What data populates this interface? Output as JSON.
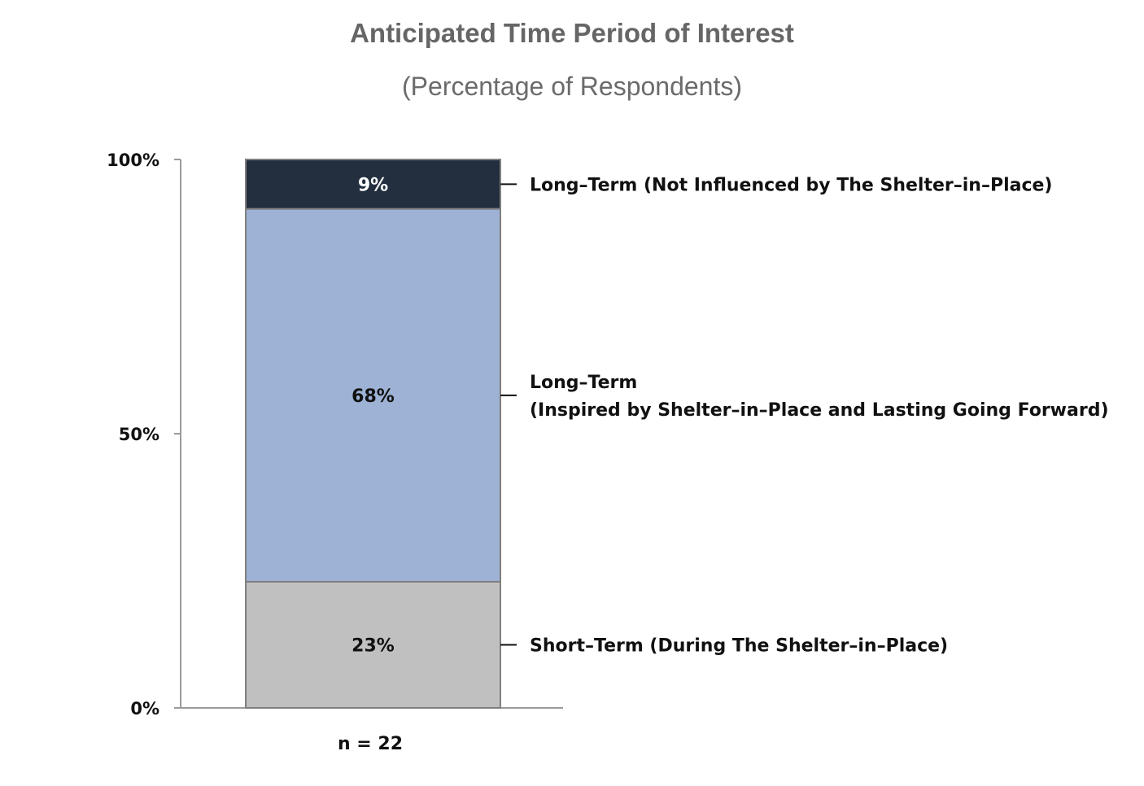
{
  "chart_data": {
    "type": "bar",
    "stacked": true,
    "title": "Anticipated Time Period of Interest",
    "subtitle": "(Percentage of Respondents)",
    "categories": [
      "n = 22"
    ],
    "ylim": [
      0,
      100
    ],
    "yticks": [
      {
        "value": 0,
        "label": "0%"
      },
      {
        "value": 50,
        "label": "50%"
      },
      {
        "value": 100,
        "label": "100%"
      }
    ],
    "grid": false,
    "legend_placement": "right",
    "series": [
      {
        "name": "Short–Term (During The Shelter–in–Place)",
        "label_lines": [
          "Short–Term (During The Shelter–in–Place)"
        ],
        "values": [
          23
        ],
        "data_label": "23%",
        "color": "#c0c0c0",
        "label_color": "#111111"
      },
      {
        "name": "Long–Term (Inspired by Shelter–in–Place and Lasting Going Forward)",
        "label_lines": [
          "Long–Term",
          "(Inspired by Shelter–in–Place and Lasting Going Forward)"
        ],
        "values": [
          68
        ],
        "data_label": "68%",
        "color": "#9db2d4",
        "label_color": "#111111"
      },
      {
        "name": "Long–Term (Not Influenced by The Shelter–in–Place)",
        "label_lines": [
          "Long–Term (Not Influenced by The Shelter–in–Place)"
        ],
        "values": [
          9
        ],
        "data_label": "9%",
        "color": "#232f3e",
        "label_color": "#ffffff"
      }
    ]
  }
}
